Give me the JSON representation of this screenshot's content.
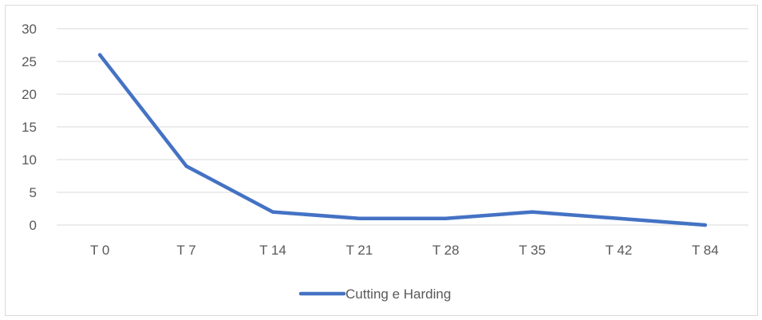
{
  "chart_data": {
    "type": "line",
    "title": "",
    "xlabel": "",
    "ylabel": "",
    "categories": [
      "T 0",
      "T 7",
      "T 14",
      "T 21",
      "T 28",
      "T 35",
      "T 42",
      "T 84"
    ],
    "series": [
      {
        "name": "Cutting e Harding",
        "values": [
          26,
          9,
          2,
          1,
          1,
          2,
          1,
          0
        ],
        "color": "#4472C4"
      }
    ],
    "ylim": [
      0,
      30
    ],
    "yticks": [
      0,
      5,
      10,
      15,
      20,
      25,
      30
    ],
    "grid": true,
    "legend": "bottom-center",
    "gridline_color": "#d9d9d9"
  }
}
